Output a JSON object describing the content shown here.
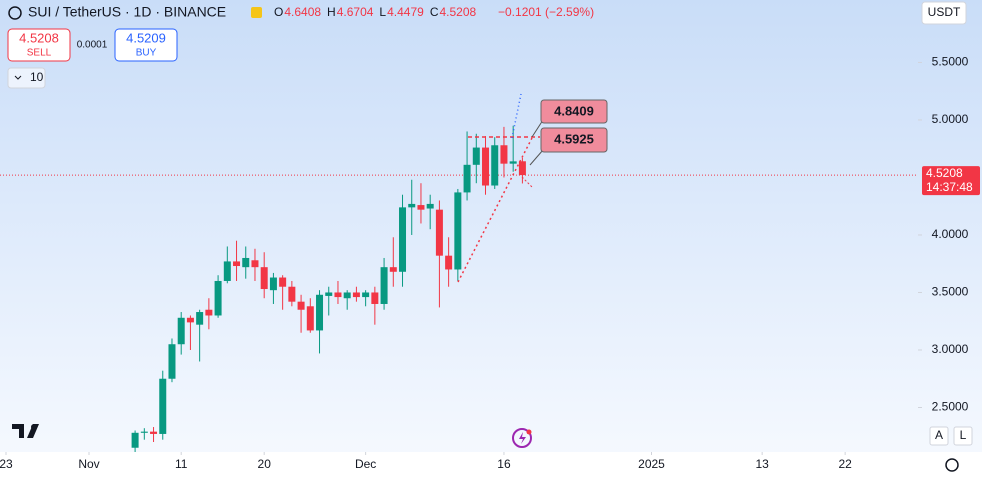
{
  "chart_data": {
    "type": "candlestick",
    "title": "SUI / TetherUS · 1D · BINANCE",
    "ohlc_legend": [
      {
        "label": "O",
        "value": 4.6408
      },
      {
        "label": "H",
        "value": 4.6704
      },
      {
        "label": "L",
        "value": 4.4479
      },
      {
        "label": "C",
        "value": 4.5208
      }
    ],
    "change": "−0.1201 (−2.59%)",
    "sell": {
      "price": 4.5208,
      "label": "SELL"
    },
    "spread": 0.0001,
    "buy": {
      "price": 4.5209,
      "label": "BUY"
    },
    "indicators_count": 10,
    "currency": "USDT",
    "last_price": 4.5208,
    "countdown": "14:37:48",
    "annotations": [
      4.8409,
      4.5925
    ],
    "scale_buttons": [
      "A",
      "L"
    ],
    "up_color": "#089981",
    "down_color": "#f23645",
    "x": [
      5,
      6,
      7,
      8,
      9,
      10,
      11,
      12,
      13,
      14,
      15,
      16,
      17,
      18,
      19,
      20,
      21,
      22,
      23,
      24,
      25,
      26,
      27,
      28,
      29,
      30,
      31,
      32,
      33,
      34,
      35,
      36,
      37,
      38,
      39,
      40,
      41,
      42,
      43,
      44,
      45,
      46,
      47
    ],
    "open": [
      2.15,
      2.28,
      2.29,
      2.27,
      2.75,
      3.05,
      3.28,
      3.22,
      3.35,
      3.3,
      3.6,
      3.77,
      3.72,
      3.78,
      3.72,
      3.52,
      3.63,
      3.55,
      3.42,
      3.38,
      3.17,
      3.47,
      3.5,
      3.45,
      3.5,
      3.46,
      3.5,
      3.4,
      3.72,
      3.68,
      4.24,
      4.26,
      4.23,
      4.22,
      3.82,
      3.7,
      4.37,
      4.61,
      4.76,
      4.43,
      4.78,
      4.62,
      4.6408
    ],
    "high": [
      2.3,
      2.32,
      2.33,
      2.82,
      3.1,
      3.33,
      3.3,
      3.35,
      3.45,
      3.65,
      3.9,
      3.95,
      3.9,
      3.88,
      3.85,
      3.67,
      3.65,
      3.6,
      3.48,
      3.45,
      3.52,
      3.55,
      3.6,
      3.52,
      3.55,
      3.52,
      3.55,
      3.8,
      3.98,
      4.35,
      4.48,
      4.45,
      4.35,
      4.3,
      3.98,
      4.4,
      4.9,
      4.88,
      4.86,
      4.85,
      4.94,
      4.95,
      4.6704
    ],
    "low": [
      2.05,
      2.22,
      2.2,
      2.22,
      2.72,
      2.96,
      3.0,
      2.9,
      3.18,
      3.28,
      3.58,
      3.6,
      3.62,
      3.6,
      3.45,
      3.4,
      3.35,
      3.38,
      3.15,
      3.15,
      2.97,
      3.3,
      3.4,
      3.35,
      3.42,
      3.38,
      3.22,
      3.35,
      3.55,
      3.55,
      4.0,
      4.1,
      4.05,
      3.37,
      3.55,
      3.6,
      4.3,
      4.45,
      4.35,
      4.4,
      4.5,
      4.55,
      4.4479
    ],
    "close": [
      2.28,
      2.29,
      2.27,
      2.75,
      3.05,
      3.28,
      3.24,
      3.33,
      3.3,
      3.6,
      3.77,
      3.73,
      3.8,
      3.72,
      3.53,
      3.63,
      3.55,
      3.42,
      3.35,
      3.17,
      3.48,
      3.5,
      3.46,
      3.5,
      3.46,
      3.5,
      3.4,
      3.72,
      3.68,
      4.24,
      4.27,
      4.22,
      4.27,
      3.82,
      3.7,
      4.37,
      4.61,
      4.76,
      4.43,
      4.78,
      4.62,
      4.64,
      4.5208
    ],
    "xlim": [
      -9.65,
      89.9
    ],
    "xticks": [
      {
        "value": -9,
        "label": "23"
      },
      {
        "value": 0,
        "label": "Nov"
      },
      {
        "value": 10,
        "label": "11"
      },
      {
        "value": 19,
        "label": "20"
      },
      {
        "value": 30,
        "label": "Dec"
      },
      {
        "value": 45,
        "label": "16"
      },
      {
        "value": 61,
        "label": "2025"
      },
      {
        "value": 73,
        "label": "13"
      },
      {
        "value": 82,
        "label": "22"
      }
    ],
    "ylim": [
      2.113,
      6.043
    ],
    "yticks": [
      {
        "value": 2.5,
        "label": "2.5000"
      },
      {
        "value": 3,
        "label": "3.0000"
      },
      {
        "value": 3.5,
        "label": "3.5000"
      },
      {
        "value": 4,
        "label": "4.0000"
      },
      {
        "value": 5,
        "label": "5.0000"
      },
      {
        "value": 5.5,
        "label": "5.5000"
      }
    ]
  }
}
